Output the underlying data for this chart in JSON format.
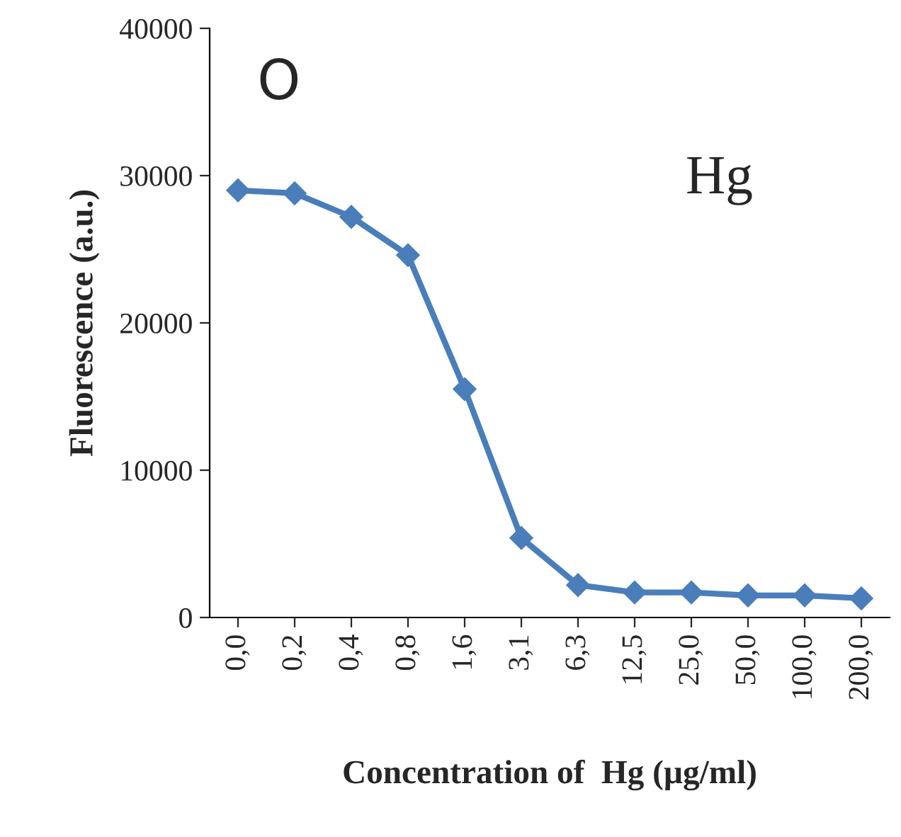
{
  "chart_data": {
    "type": "line",
    "xlabel": "Concentration of  Hg (µg/ml)",
    "ylabel": "Fluorescence (a.u.)",
    "categories": [
      "0,0",
      "0,2",
      "0,4",
      "0,8",
      "1,6",
      "3,1",
      "6,3",
      "12,5",
      "25,0",
      "50,0",
      "100,0",
      "200,0"
    ],
    "series": [
      {
        "color": "#4a7ebb",
        "values": [
          29000,
          28800,
          27200,
          24600,
          15500,
          5400,
          2200,
          1700,
          1700,
          1500,
          1500,
          1300
        ]
      }
    ],
    "ylim": [
      0,
      40000
    ],
    "yticks": [
      0,
      10000,
      20000,
      30000,
      40000
    ],
    "grid": false,
    "marker": "diamond",
    "line_style": "solid",
    "annotations": [
      "O",
      "Hg"
    ]
  }
}
